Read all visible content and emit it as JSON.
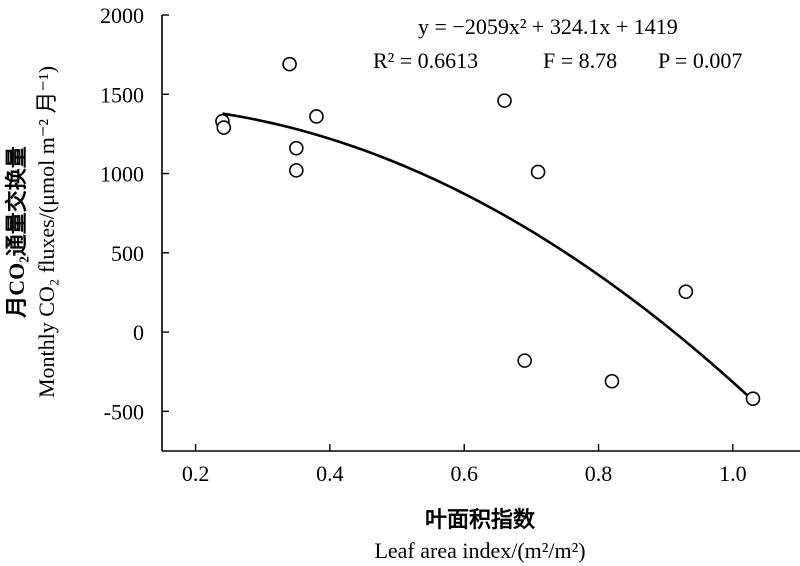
{
  "chart_data": {
    "type": "scatter",
    "x_ticks": [
      "0.2",
      "0.4",
      "0.6",
      "0.8",
      "1.0"
    ],
    "y_ticks": [
      "-500",
      "0",
      "500",
      "1000",
      "1500",
      "2000"
    ],
    "xlim": [
      0.15,
      1.1
    ],
    "ylim": [
      -750,
      2000
    ],
    "xlabel_cn": "叶面积指数",
    "xlabel_en": "Leaf area index/(m²/m²)",
    "ylabel_cn": "月CO₂通量交换量",
    "ylabel_en": "Monthly CO₂ fluxes/(μmol m⁻² 月⁻¹)",
    "equation": "y = −2059x² + 324.1x + 1419",
    "r2_text": "R² = 0.6613",
    "f_text": "F = 8.78",
    "p_text": "P = 0.007",
    "fit": {
      "a": -2059,
      "b": 324.1,
      "c": 1419,
      "x_range": [
        0.24,
        1.03
      ]
    },
    "points": [
      {
        "x": 0.24,
        "y": 1330
      },
      {
        "x": 0.242,
        "y": 1290
      },
      {
        "x": 0.34,
        "y": 1690
      },
      {
        "x": 0.35,
        "y": 1160
      },
      {
        "x": 0.35,
        "y": 1020
      },
      {
        "x": 0.38,
        "y": 1360
      },
      {
        "x": 0.66,
        "y": 1460
      },
      {
        "x": 0.71,
        "y": 1010
      },
      {
        "x": 0.69,
        "y": -180
      },
      {
        "x": 0.82,
        "y": -310
      },
      {
        "x": 0.93,
        "y": 255
      },
      {
        "x": 1.03,
        "y": -420
      }
    ]
  }
}
